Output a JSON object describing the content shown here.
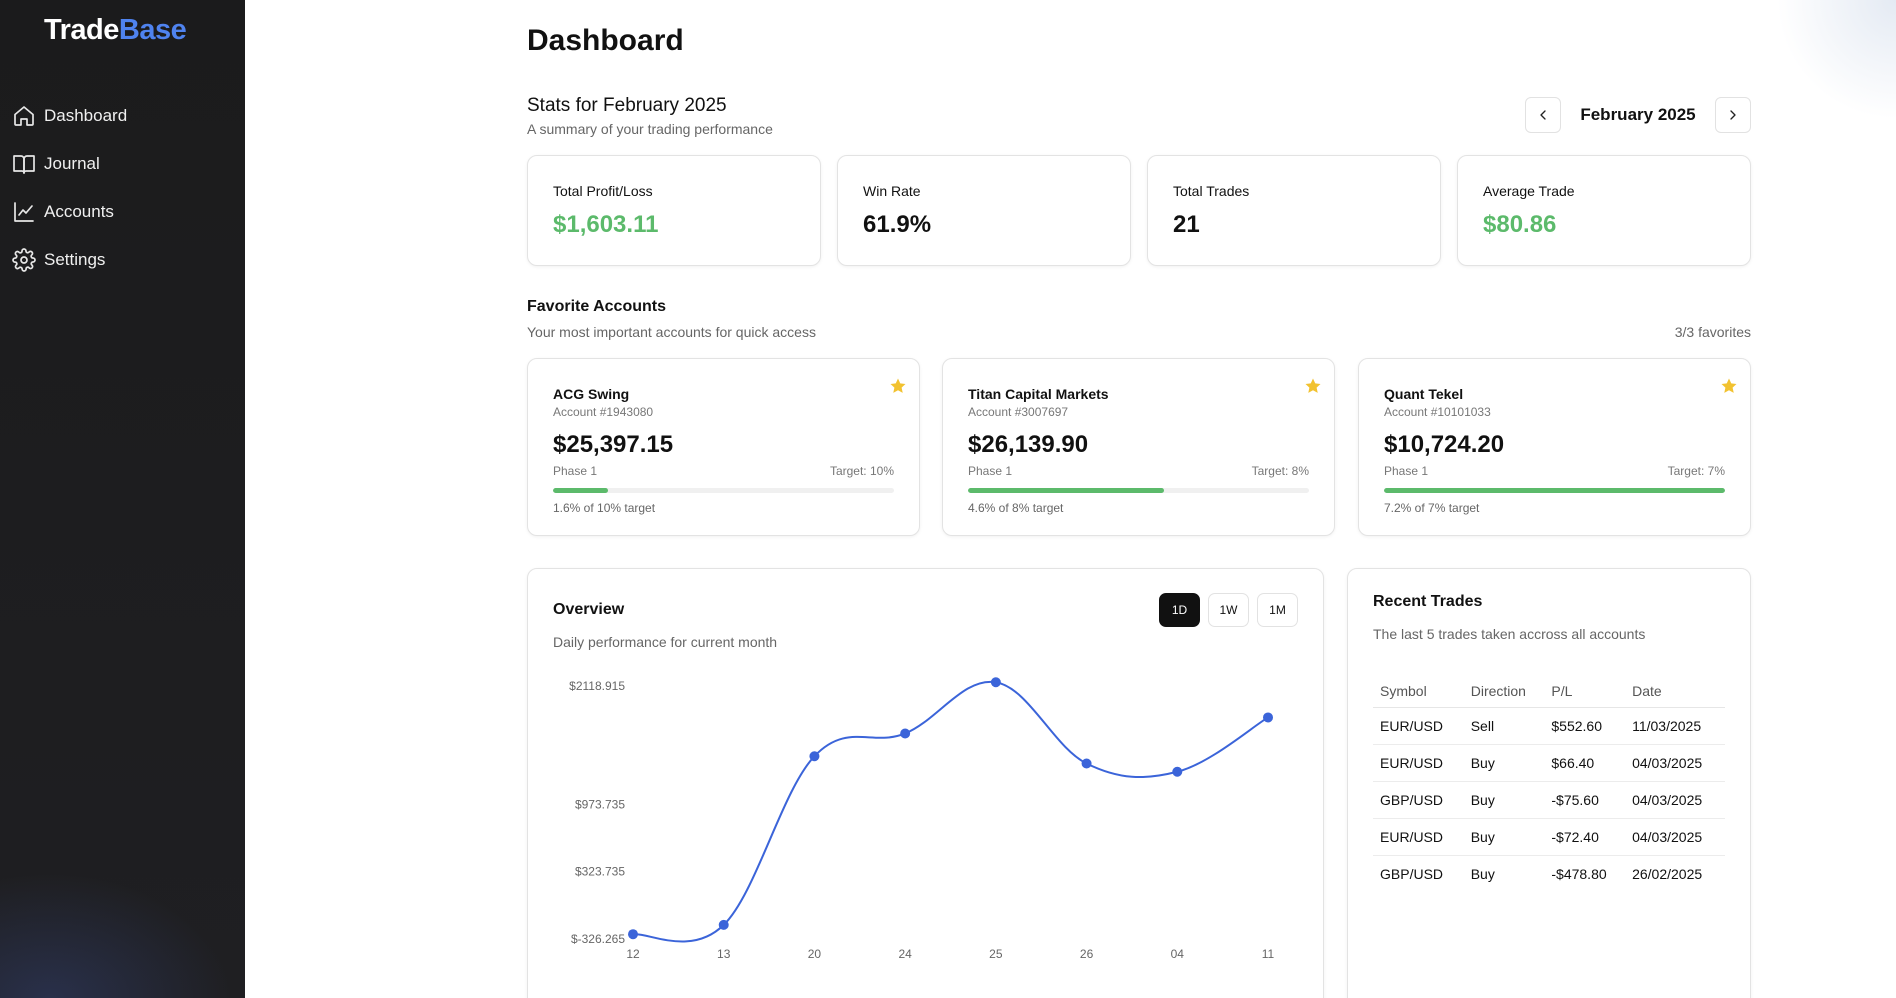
{
  "app": {
    "logo_main": "Trade",
    "logo_accent": "Base"
  },
  "sidebar": {
    "items": [
      {
        "label": "Dashboard",
        "icon": "home-icon"
      },
      {
        "label": "Journal",
        "icon": "book-icon"
      },
      {
        "label": "Accounts",
        "icon": "line-chart-icon"
      },
      {
        "label": "Settings",
        "icon": "gear-icon"
      }
    ]
  },
  "page": {
    "title": "Dashboard"
  },
  "stats": {
    "title": "Stats for February 2025",
    "subtitle": "A summary of your trading performance",
    "month": "February 2025",
    "cards": [
      {
        "label": "Total Profit/Loss",
        "value": "$1,603.11",
        "tone": "positive"
      },
      {
        "label": "Win Rate",
        "value": "61.9%",
        "tone": "neutral"
      },
      {
        "label": "Total Trades",
        "value": "21",
        "tone": "neutral"
      },
      {
        "label": "Average Trade",
        "value": "$80.86",
        "tone": "positive"
      }
    ]
  },
  "favorites": {
    "title": "Favorite Accounts",
    "subtitle": "Your most important accounts for quick access",
    "count": "3/3 favorites",
    "accounts": [
      {
        "name": "ACG Swing",
        "number": "Account #1943080",
        "balance": "$25,397.15",
        "phase": "Phase 1",
        "target": "Target: 10%",
        "progress_fraction": 0.16,
        "footer": "1.6% of 10% target"
      },
      {
        "name": "Titan Capital Markets",
        "number": "Account #3007697",
        "balance": "$26,139.90",
        "phase": "Phase 1",
        "target": "Target: 8%",
        "progress_fraction": 0.575,
        "footer": "4.6% of 8% target"
      },
      {
        "name": "Quant Tekel",
        "number": "Account #10101033",
        "balance": "$10,724.20",
        "phase": "Phase 1",
        "target": "Target: 7%",
        "progress_fraction": 1.0,
        "footer": "7.2% of 7% target"
      }
    ]
  },
  "overview": {
    "title": "Overview",
    "subtitle": "Daily performance for current month",
    "ranges": [
      "1D",
      "1W",
      "1M"
    ],
    "active_range": "1D"
  },
  "chart_data": {
    "type": "line",
    "title": "",
    "xlabel": "",
    "ylabel": "",
    "categories": [
      "12",
      "13",
      "20",
      "24",
      "25",
      "26",
      "04",
      "11"
    ],
    "values": [
      -280,
      -190,
      1440,
      1660,
      2155,
      1370,
      1290,
      1815
    ],
    "y_tick_labels": [
      "$2118.915",
      "$973.735",
      "$323.735",
      "$-326.265"
    ],
    "y_tick_values": [
      2118.915,
      973.735,
      323.735,
      -326.265
    ],
    "ylim": [
      -326.265,
      2200
    ],
    "line_color": "#3b64d9",
    "grid": false,
    "legend": "none"
  },
  "recent_trades": {
    "title": "Recent Trades",
    "subtitle": "The last 5 trades taken accross all accounts",
    "headers": [
      "Symbol",
      "Direction",
      "P/L",
      "Date"
    ],
    "rows": [
      {
        "symbol": "EUR/USD",
        "direction": "Sell",
        "pl": "$552.60",
        "tone": "positive",
        "date": "11/03/2025"
      },
      {
        "symbol": "EUR/USD",
        "direction": "Buy",
        "pl": "$66.40",
        "tone": "positive",
        "date": "04/03/2025"
      },
      {
        "symbol": "GBP/USD",
        "direction": "Buy",
        "pl": "-$75.60",
        "tone": "negative",
        "date": "04/03/2025"
      },
      {
        "symbol": "EUR/USD",
        "direction": "Buy",
        "pl": "-$72.40",
        "tone": "negative",
        "date": "04/03/2025"
      },
      {
        "symbol": "GBP/USD",
        "direction": "Buy",
        "pl": "-$478.80",
        "tone": "negative",
        "date": "26/02/2025"
      }
    ]
  },
  "colors": {
    "accent": "#4f83ef",
    "positive": "#5cba6b",
    "negative": "#e0483a",
    "star": "#f2c230",
    "sidebar_bg": "#1b1b1c"
  }
}
